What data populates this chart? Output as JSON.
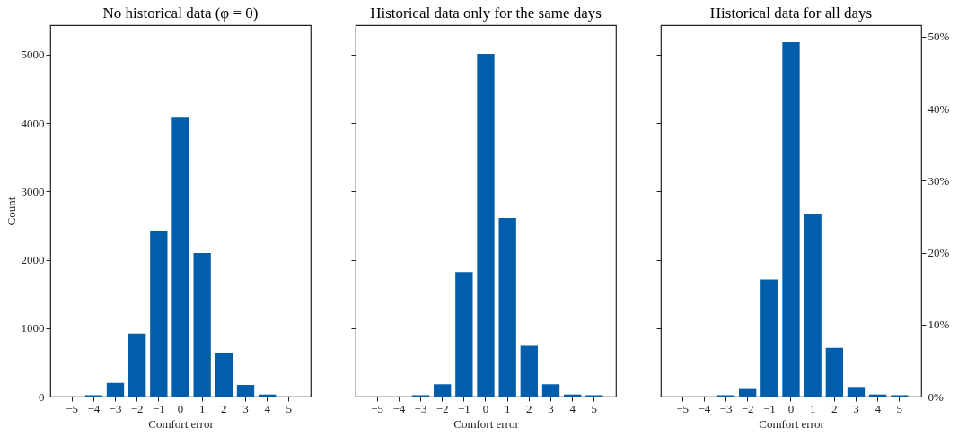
{
  "chart_data": [
    {
      "type": "bar",
      "title": "No historical data (φ = 0)",
      "xlabel": "Comfort error",
      "ylabel": "Count",
      "categories": [
        "−5",
        "−4",
        "−3",
        "−2",
        "−1",
        "0",
        "1",
        "2",
        "3",
        "4",
        "5"
      ],
      "values": [
        0,
        20,
        200,
        920,
        2420,
        4090,
        2100,
        640,
        170,
        30,
        0
      ],
      "color": "#005eaa",
      "ylim": [
        0,
        5430
      ],
      "yticks": [
        0,
        1000,
        2000,
        3000,
        4000,
        5000
      ],
      "grid": false
    },
    {
      "type": "bar",
      "title": "Historical data only for the same days",
      "xlabel": "Comfort error",
      "categories": [
        "−5",
        "−4",
        "−3",
        "−2",
        "−1",
        "0",
        "1",
        "2",
        "3",
        "4",
        "5"
      ],
      "values": [
        0,
        0,
        20,
        180,
        1820,
        5010,
        2610,
        740,
        180,
        30,
        20
      ],
      "color": "#005eaa",
      "ylim": [
        0,
        5430
      ],
      "yticks": [
        0,
        1000,
        2000,
        3000,
        4000,
        5000
      ],
      "grid": false,
      "tick_labels": "x"
    },
    {
      "type": "bar",
      "title": "Historical data for all days",
      "xlabel": "Comfort error",
      "categories": [
        "−5",
        "−4",
        "−3",
        "−2",
        "−1",
        "0",
        "1",
        "2",
        "3",
        "4",
        "5"
      ],
      "values": [
        0,
        0,
        20,
        110,
        1710,
        5180,
        2670,
        710,
        140,
        30,
        20
      ],
      "color": "#005eaa",
      "ylim": [
        0,
        5430
      ],
      "yticks": [
        0,
        1000,
        2000,
        3000,
        4000,
        5000
      ],
      "y2lim": [
        0,
        51.6
      ],
      "y2ticks": [
        {
          "value": 0,
          "label": "0%"
        },
        {
          "value": 10,
          "label": "10%"
        },
        {
          "value": 20,
          "label": "20%"
        },
        {
          "value": 30,
          "label": "30%"
        },
        {
          "value": 40,
          "label": "40%"
        },
        {
          "value": 50,
          "label": "50%"
        }
      ],
      "grid": false,
      "tick_labels": "x"
    }
  ]
}
